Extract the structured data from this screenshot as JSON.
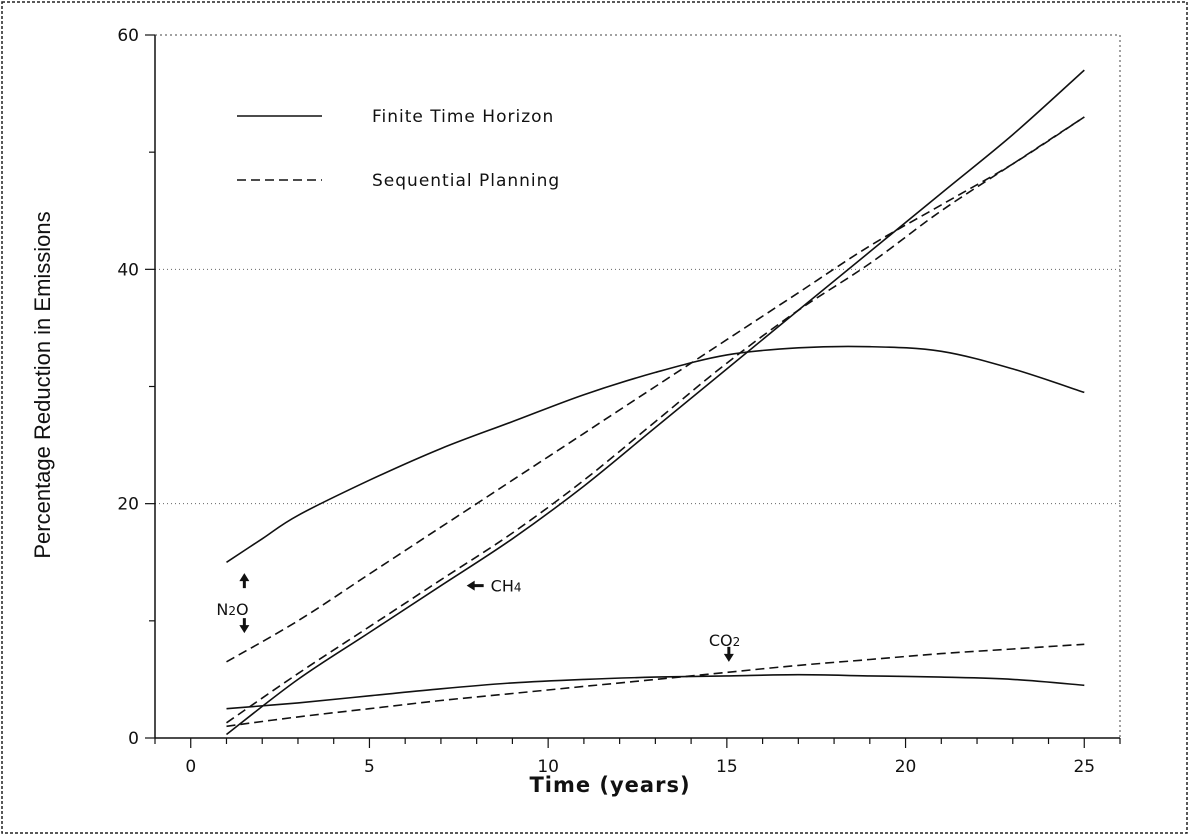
{
  "chart_data": {
    "type": "line",
    "title": "",
    "xlabel": "Time (years)",
    "ylabel": "Percentage Reduction in Emissions",
    "xlim": [
      -1,
      26
    ],
    "ylim": [
      0,
      60
    ],
    "xticks": [
      0,
      5,
      10,
      15,
      20,
      25
    ],
    "yticks": [
      0,
      20,
      40,
      60
    ],
    "grid": "horizontal dotted at 20 and 40",
    "legend": {
      "position": "top-left",
      "entries": [
        {
          "label": "Finite Time Horizon",
          "style": "solid"
        },
        {
          "label": "Sequential Planning",
          "style": "dashed"
        }
      ]
    },
    "annotations": {
      "n2o": {
        "name": "N",
        "sub": "2",
        "suffix": "O",
        "x": 1.5,
        "y": 11
      },
      "ch4": {
        "name": "CH",
        "sub": "4",
        "x": 8,
        "y": 13
      },
      "co2": {
        "name": "CO",
        "sub": "2",
        "x": 15,
        "y": 6.5
      }
    },
    "series": [
      {
        "style": "solid",
        "x": [
          1,
          2,
          3,
          5,
          7,
          9,
          11,
          13,
          15,
          17,
          19,
          21,
          23,
          25
        ],
        "values": [
          15,
          17,
          19,
          22,
          24.7,
          27,
          29.3,
          31.2,
          32.7,
          33.3,
          33.4,
          33,
          31.5,
          29.5
        ]
      },
      {
        "style": "dashed",
        "x": [
          1,
          3,
          5,
          7,
          9,
          11,
          13,
          15,
          17,
          19,
          21,
          23,
          25
        ],
        "values": [
          6.5,
          10,
          14,
          18,
          22,
          26,
          30,
          34,
          38,
          42,
          45.5,
          49,
          53
        ]
      },
      {
        "style": "solid",
        "x": [
          1,
          3,
          5,
          7,
          9,
          11,
          13,
          15,
          17,
          19,
          21,
          23,
          25
        ],
        "values": [
          0.3,
          5,
          9,
          13,
          17,
          21.5,
          26.5,
          31.5,
          36.5,
          41.5,
          46.5,
          51.5,
          57
        ]
      },
      {
        "style": "dashed",
        "x": [
          1,
          3,
          5,
          7,
          9,
          11,
          13,
          15,
          17,
          19,
          21,
          23,
          25
        ],
        "values": [
          1.3,
          5.5,
          9.5,
          13.5,
          17.5,
          22,
          27,
          32,
          36.5,
          40.5,
          45,
          49,
          53
        ]
      },
      {
        "style": "solid",
        "x": [
          1,
          3,
          5,
          7,
          9,
          11,
          13,
          15,
          17,
          19,
          21,
          23,
          25
        ],
        "values": [
          2.5,
          3,
          3.6,
          4.2,
          4.7,
          5,
          5.2,
          5.3,
          5.4,
          5.3,
          5.2,
          5,
          4.5
        ]
      },
      {
        "style": "dashed",
        "x": [
          1,
          3,
          5,
          7,
          9,
          11,
          13,
          15,
          17,
          19,
          21,
          23,
          25
        ],
        "values": [
          1,
          1.8,
          2.5,
          3.2,
          3.8,
          4.4,
          5,
          5.6,
          6.2,
          6.7,
          7.2,
          7.6,
          8
        ]
      }
    ]
  }
}
